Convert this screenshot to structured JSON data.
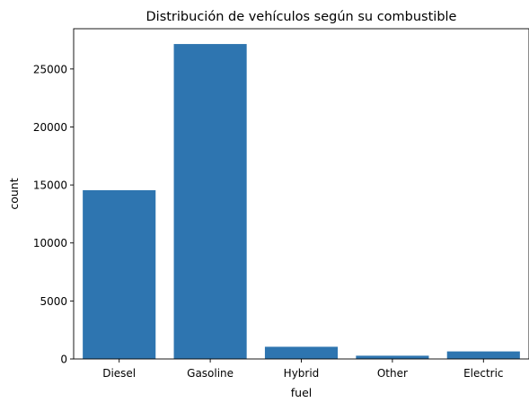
{
  "chart_data": {
    "type": "bar",
    "title": "Distribución de vehículos según su combustible",
    "xlabel": "fuel",
    "ylabel": "count",
    "categories": [
      "Diesel",
      "Gasoline",
      "Hybrid",
      "Other",
      "Electric"
    ],
    "values": [
      14550,
      27150,
      1050,
      280,
      650
    ],
    "ylim": [
      0,
      28470
    ],
    "yticks": [
      0,
      5000,
      10000,
      15000,
      20000,
      25000
    ],
    "grid": false,
    "legend": "none",
    "bar_color": "#2e75b0"
  }
}
